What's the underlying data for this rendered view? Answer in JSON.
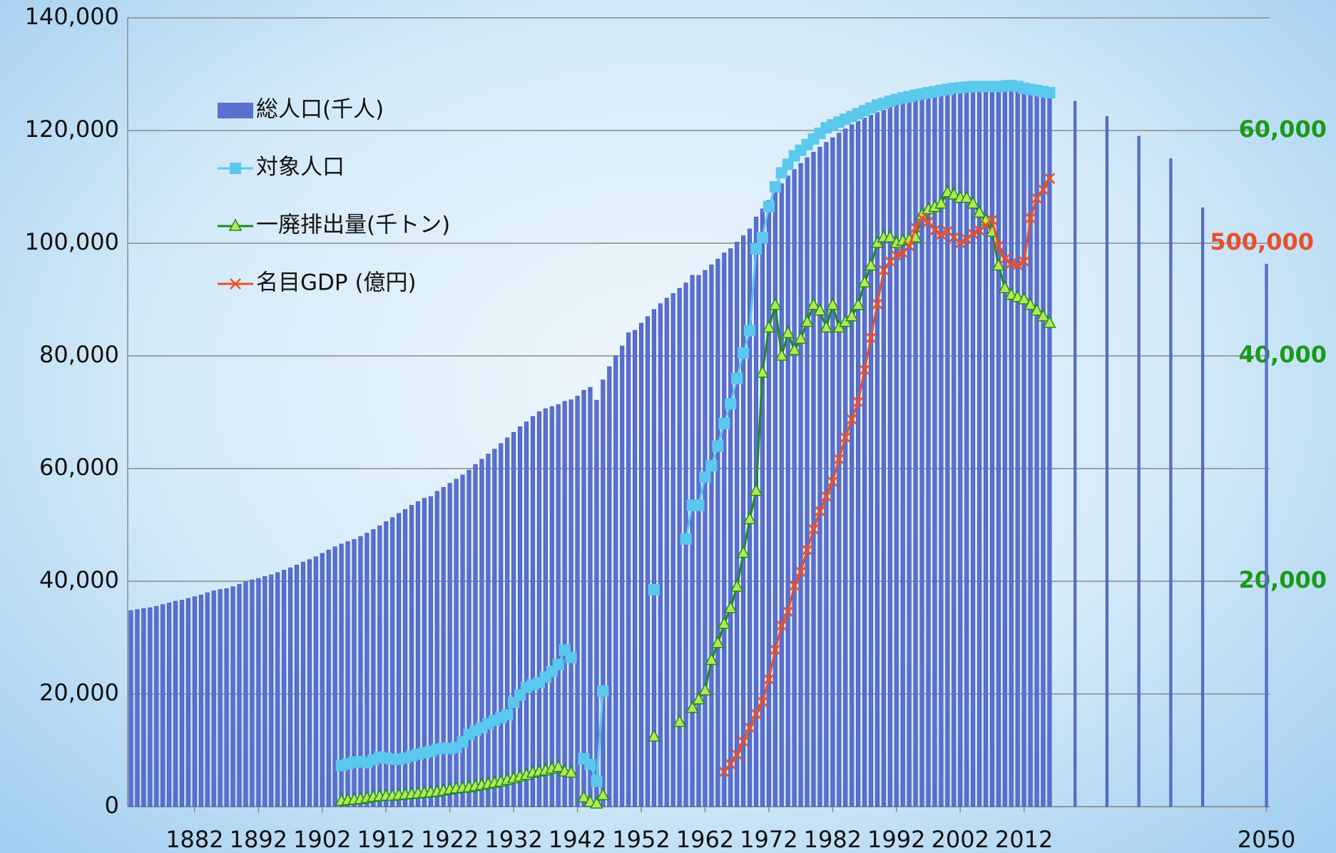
{
  "chart_data": {
    "type": "bar",
    "xlim": [
      1871.5,
      2050.5
    ],
    "xticks": [
      1882,
      1892,
      1902,
      1912,
      1922,
      1932,
      1942,
      1952,
      1962,
      1972,
      1982,
      1992,
      2002,
      2012,
      2050
    ],
    "ylim": [
      0,
      140000
    ],
    "yticks": [
      0,
      {
        "value": 20000,
        "label": "20,000"
      },
      {
        "value": 40000,
        "label": "40,000"
      },
      {
        "value": 60000,
        "label": "60,000"
      },
      {
        "value": 80000,
        "label": "80,000"
      },
      {
        "value": 100000,
        "label": "100,000"
      },
      {
        "value": 120000,
        "label": "120,000"
      },
      {
        "value": 140000,
        "label": "140,000"
      }
    ],
    "y2lim": [
      0,
      70000
    ],
    "y2ticks": [
      {
        "value": 20000,
        "label": "20,000"
      },
      {
        "value": 40000,
        "label": "40,000"
      },
      {
        "value": 60000,
        "label": "60,000"
      }
    ],
    "y3lim": [
      0,
      700000
    ],
    "y3ticks": [
      {
        "value": 500000,
        "label": "500,000"
      }
    ],
    "grid": true,
    "legend": "upper left",
    "series": [
      {
        "name": "総人口(千人)",
        "type": "bar",
        "color": "#5a6fd0",
        "x": [
          1872,
          1873,
          1874,
          1875,
          1876,
          1877,
          1878,
          1879,
          1880,
          1881,
          1882,
          1883,
          1884,
          1885,
          1886,
          1887,
          1888,
          1889,
          1890,
          1891,
          1892,
          1893,
          1894,
          1895,
          1896,
          1897,
          1898,
          1899,
          1900,
          1901,
          1902,
          1903,
          1904,
          1905,
          1906,
          1907,
          1908,
          1909,
          1910,
          1911,
          1912,
          1913,
          1914,
          1915,
          1916,
          1917,
          1918,
          1919,
          1920,
          1921,
          1922,
          1923,
          1924,
          1925,
          1926,
          1927,
          1928,
          1929,
          1930,
          1931,
          1932,
          1933,
          1934,
          1935,
          1936,
          1937,
          1938,
          1939,
          1940,
          1941,
          1942,
          1943,
          1944,
          1945,
          1946,
          1947,
          1948,
          1949,
          1950,
          1951,
          1952,
          1953,
          1954,
          1955,
          1956,
          1957,
          1958,
          1959,
          1960,
          1961,
          1962,
          1963,
          1964,
          1965,
          1966,
          1967,
          1968,
          1969,
          1970,
          1971,
          1972,
          1973,
          1974,
          1975,
          1976,
          1977,
          1978,
          1979,
          1980,
          1981,
          1982,
          1983,
          1984,
          1985,
          1986,
          1987,
          1988,
          1989,
          1990,
          1991,
          1992,
          1993,
          1994,
          1995,
          1996,
          1997,
          1998,
          1999,
          2000,
          2001,
          2002,
          2003,
          2004,
          2005,
          2006,
          2007,
          2008,
          2009,
          2010,
          2011,
          2012,
          2013,
          2014,
          2015,
          2016,
          2020,
          2025,
          2030,
          2035,
          2040,
          2050
        ],
        "values": [
          34806,
          34985,
          35154,
          35316,
          35555,
          35870,
          36166,
          36464,
          36649,
          36965,
          37259,
          37569,
          37962,
          38313,
          38541,
          38703,
          39029,
          39473,
          39902,
          40251,
          40508,
          40860,
          41142,
          41557,
          41992,
          42400,
          42886,
          43404,
          43847,
          44359,
          44964,
          45546,
          46135,
          46620,
          47038,
          47416,
          47965,
          48554,
          49184,
          49852,
          50577,
          51305,
          52039,
          52752,
          53496,
          54134,
          54739,
          55033,
          55963,
          56666,
          57390,
          58119,
          58876,
          59737,
          60741,
          61659,
          62595,
          63461,
          64450,
          65457,
          66434,
          67432,
          68309,
          69254,
          70114,
          70630,
          71013,
          71380,
          71933,
          72218,
          72880,
          73903,
          74433,
          72147,
          75750,
          78101,
          80002,
          81773,
          84115,
          84541,
          85808,
          86981,
          88239,
          89276,
          90259,
          91088,
          92010,
          92973,
          94302,
          94287,
          95181,
          96156,
          97182,
          98275,
          99036,
          100196,
          101331,
          102536,
          104665,
          106100,
          107595,
          109104,
          110573,
          111940,
          113094,
          114165,
          115190,
          116155,
          117060,
          117902,
          118728,
          119536,
          120305,
          121049,
          121660,
          122239,
          122745,
          123205,
          123611,
          124101,
          124567,
          124938,
          125265,
          125570,
          125859,
          126157,
          126472,
          126667,
          126926,
          127316,
          127486,
          127694,
          127787,
          127768,
          127901,
          128033,
          128084,
          128032,
          128057,
          127834,
          127593,
          127414,
          127237,
          127095,
          126933,
          125200,
          122500,
          119000,
          115000,
          106300,
          96300
        ]
      },
      {
        "name": "対象人口",
        "type": "line",
        "marker": "square",
        "color": "#5bc8ee",
        "marker_color": "#5bc8ee",
        "x": [
          1905,
          1906,
          1907,
          1908,
          1909,
          1910,
          1911,
          1912,
          1913,
          1914,
          1915,
          1916,
          1917,
          1918,
          1919,
          1920,
          1921,
          1922,
          1923,
          1924,
          1925,
          1926,
          1927,
          1928,
          1929,
          1930,
          1931,
          1932,
          1933,
          1934,
          1935,
          1936,
          1937,
          1938,
          1939,
          1940,
          1941,
          1942,
          1943,
          1944,
          1945,
          1946,
          1947,
          1954,
          1955,
          1959,
          1960,
          1961,
          1962,
          1963,
          1964,
          1965,
          1966,
          1967,
          1968,
          1969,
          1970,
          1971,
          1972,
          1973,
          1974,
          1975,
          1976,
          1977,
          1978,
          1979,
          1980,
          1981,
          1982,
          1983,
          1984,
          1985,
          1986,
          1987,
          1988,
          1989,
          1990,
          1991,
          1992,
          1993,
          1994,
          1995,
          1996,
          1997,
          1998,
          1999,
          2000,
          2001,
          2002,
          2003,
          2004,
          2005,
          2006,
          2007,
          2008,
          2009,
          2010,
          2011,
          2012,
          2013,
          2014,
          2015,
          2016
        ],
        "values": [
          7300,
          7600,
          7900,
          8000,
          7800,
          8300,
          8800,
          8600,
          8400,
          8400,
          8600,
          9000,
          9300,
          9600,
          9800,
          10200,
          10400,
          10300,
          10500,
          11500,
          12800,
          13500,
          14000,
          14700,
          15300,
          15800,
          16300,
          18500,
          19800,
          21200,
          21600,
          22000,
          23000,
          24000,
          25200,
          27800,
          26500,
          null,
          8500,
          7500,
          4500,
          20500,
          null,
          38500,
          null,
          47500,
          53500,
          53500,
          58500,
          60500,
          64000,
          68000,
          71500,
          76000,
          80500,
          84500,
          99000,
          101000,
          106500,
          110000,
          112500,
          114000,
          115500,
          116500,
          117500,
          118500,
          119500,
          120500,
          121000,
          121500,
          122000,
          122500,
          123000,
          123500,
          124000,
          124500,
          124800,
          125200,
          125500,
          125800,
          126000,
          126300,
          126500,
          126700,
          126900,
          127100,
          127300,
          127500,
          127600,
          127700,
          127800,
          127800,
          127800,
          127800,
          127800,
          127900,
          128000,
          127800,
          127500,
          127300,
          127100,
          126900,
          126700
        ]
      },
      {
        "name": "一廃排出量(千トン)",
        "type": "line",
        "marker": "triangle",
        "axis": "y2",
        "color": "#1e8c1e",
        "marker_color": "#b5e655",
        "x": [
          1905,
          1906,
          1907,
          1908,
          1909,
          1910,
          1911,
          1912,
          1913,
          1914,
          1915,
          1916,
          1917,
          1918,
          1919,
          1920,
          1921,
          1922,
          1923,
          1924,
          1925,
          1926,
          1927,
          1928,
          1929,
          1930,
          1931,
          1932,
          1933,
          1934,
          1935,
          1936,
          1937,
          1938,
          1939,
          1940,
          1941,
          1942,
          1943,
          1944,
          1945,
          1946,
          1947,
          1954,
          1955,
          1958,
          1959,
          1960,
          1961,
          1962,
          1963,
          1964,
          1965,
          1966,
          1967,
          1968,
          1969,
          1970,
          1971,
          1972,
          1973,
          1974,
          1975,
          1976,
          1977,
          1978,
          1979,
          1980,
          1981,
          1982,
          1983,
          1984,
          1985,
          1986,
          1987,
          1988,
          1989,
          1990,
          1991,
          1992,
          1993,
          1994,
          1995,
          1996,
          1997,
          1998,
          1999,
          2000,
          2001,
          2002,
          2003,
          2004,
          2005,
          2006,
          2007,
          2008,
          2009,
          2010,
          2011,
          2012,
          2013,
          2014,
          2015,
          2016
        ],
        "values": [
          500,
          550,
          600,
          650,
          750,
          850,
          900,
          950,
          950,
          1000,
          1050,
          1100,
          1150,
          1200,
          1250,
          1300,
          1400,
          1500,
          1600,
          1650,
          1700,
          1800,
          1900,
          2000,
          2100,
          2200,
          2350,
          2500,
          2650,
          2800,
          3000,
          3100,
          3200,
          3350,
          3500,
          3100,
          3000,
          null,
          800,
          400,
          250,
          1000,
          null,
          6200,
          null,
          7500,
          null,
          8750,
          9500,
          10300,
          13000,
          14500,
          16200,
          17600,
          19500,
          22500,
          25500,
          28000,
          38500,
          42500,
          44500,
          40000,
          42000,
          40500,
          41500,
          43000,
          44500,
          44000,
          42500,
          44500,
          42500,
          43000,
          43500,
          44500,
          46500,
          48000,
          50000,
          50500,
          50500,
          50000,
          50200,
          50300,
          50500,
          52500,
          53000,
          53200,
          53500,
          54500,
          54300,
          54000,
          54000,
          53500,
          52700,
          52000,
          51000,
          48000,
          46000,
          45400,
          45200,
          45000,
          44500,
          44000,
          43500,
          42900
        ]
      },
      {
        "name": "名目GDP (億円)",
        "type": "line",
        "marker": "x",
        "axis": "y3",
        "color": "#e8502a",
        "marker_color": "#e8502a",
        "x": [
          1965,
          1966,
          1967,
          1968,
          1969,
          1970,
          1971,
          1972,
          1973,
          1974,
          1975,
          1976,
          1977,
          1978,
          1979,
          1980,
          1981,
          1982,
          1983,
          1984,
          1985,
          1986,
          1987,
          1988,
          1989,
          1990,
          1991,
          1992,
          1993,
          1994,
          1995,
          1996,
          1997,
          1998,
          1999,
          2000,
          2001,
          2002,
          2003,
          2004,
          2005,
          2006,
          2007,
          2008,
          2009,
          2010,
          2011,
          2012,
          2013,
          2014,
          2015,
          2016
        ],
        "values": [
          30800,
          37700,
          46100,
          57700,
          70000,
          82300,
          93000,
          113000,
          139200,
          160700,
          173000,
          196100,
          208400,
          227600,
          246100,
          262200,
          275300,
          288400,
          308400,
          327600,
          343700,
          359100,
          387600,
          416000,
          446000,
          476000,
          483700,
          489000,
          491400,
          497500,
          513700,
          522200,
          519000,
          511400,
          507500,
          510600,
          505200,
          500000,
          503700,
          508300,
          511400,
          516000,
          520600,
          497500,
          486000,
          482200,
          480600,
          483700,
          522200,
          539800,
          547500,
          557500
        ]
      }
    ]
  }
}
